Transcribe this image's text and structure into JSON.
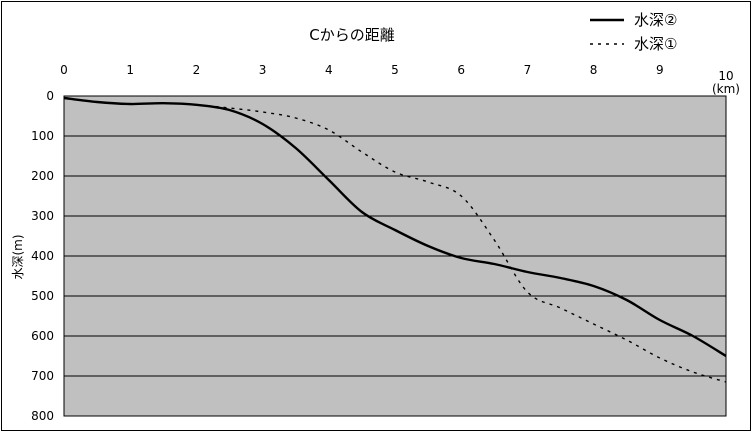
{
  "chart_data": {
    "type": "line",
    "title": "Cからの距離",
    "x_unit": "(km)",
    "ylabel": "水深(m)",
    "xlim": [
      0,
      10
    ],
    "ylim": [
      0,
      800
    ],
    "y_inverted": true,
    "x_ticks": [
      "0",
      "1",
      "2",
      "3",
      "4",
      "5",
      "6",
      "7",
      "8",
      "9",
      "10"
    ],
    "y_ticks": [
      "0",
      "100",
      "200",
      "300",
      "400",
      "500",
      "600",
      "700",
      "800"
    ],
    "x_tick_values": [
      0,
      1,
      2,
      3,
      4,
      5,
      6,
      7,
      8,
      9,
      10
    ],
    "y_tick_values": [
      0,
      100,
      200,
      300,
      400,
      500,
      600,
      700,
      800
    ],
    "x_axis_position": "top",
    "plot_background": "#c0c0c0",
    "gridlines": "horizontal",
    "legend_position": "top-right",
    "series": [
      {
        "name": "水深②",
        "style": "solid",
        "color": "#000000",
        "x": [
          0,
          0.5,
          1,
          1.5,
          2,
          2.5,
          3,
          3.5,
          4,
          4.5,
          5,
          5.5,
          6,
          6.5,
          7,
          7.5,
          8,
          8.5,
          9,
          9.5,
          10
        ],
        "y": [
          5,
          15,
          20,
          18,
          22,
          35,
          70,
          130,
          210,
          290,
          335,
          375,
          405,
          420,
          440,
          455,
          475,
          510,
          560,
          600,
          650
        ]
      },
      {
        "name": "水深①",
        "style": "dashed",
        "color": "#000000",
        "x": [
          0,
          0.5,
          1,
          1.5,
          2,
          2.5,
          3,
          3.5,
          4,
          4.5,
          5,
          5.5,
          6,
          6.5,
          7,
          7.5,
          8,
          8.5,
          9,
          9.5,
          10
        ],
        "y": [
          5,
          15,
          20,
          18,
          22,
          30,
          40,
          55,
          85,
          140,
          190,
          215,
          250,
          360,
          490,
          530,
          570,
          610,
          655,
          690,
          715
        ]
      }
    ]
  }
}
